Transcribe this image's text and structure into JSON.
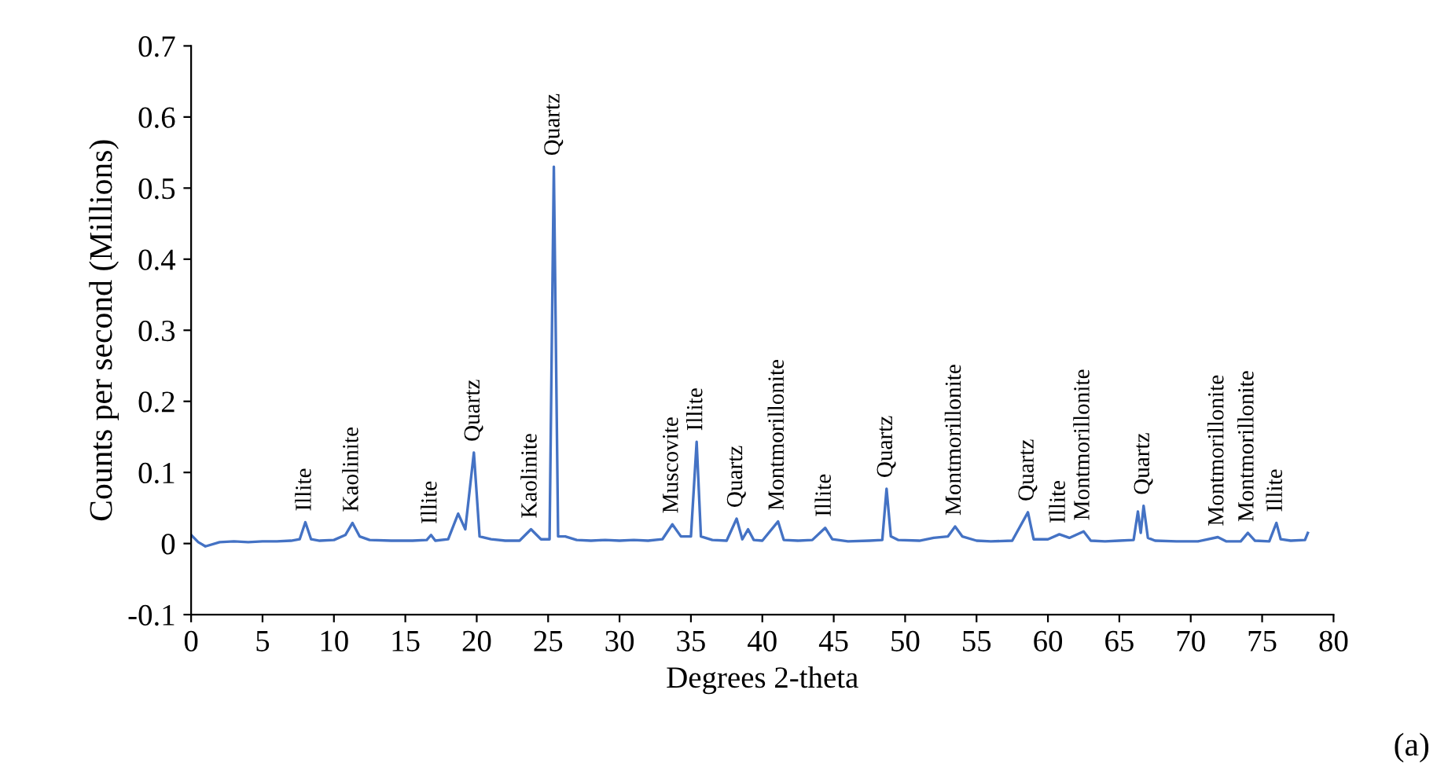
{
  "chart_data": {
    "type": "line",
    "xlabel": "Degrees 2-theta",
    "ylabel": "Counts per second (Millions)",
    "x": [
      0,
      0.5,
      1,
      2,
      3,
      4,
      5,
      6,
      7,
      7.6,
      8.0,
      8.4,
      9,
      10,
      10.8,
      11.3,
      11.8,
      12.5,
      14,
      15.5,
      16.5,
      16.8,
      17.1,
      18,
      18.7,
      19.2,
      19.8,
      20.2,
      21,
      22,
      23,
      23.8,
      24.5,
      25.1,
      25.4,
      25.7,
      26.2,
      27,
      28,
      29,
      30,
      31,
      32,
      33,
      33.7,
      34.3,
      35.0,
      35.4,
      35.7,
      36.5,
      37.5,
      38.2,
      38.6,
      39.0,
      39.4,
      40,
      41.1,
      41.5,
      42.5,
      43.5,
      44.4,
      44.9,
      46,
      47.5,
      48.4,
      48.7,
      49.0,
      49.5,
      51,
      52,
      53,
      53.5,
      54,
      55,
      56,
      57.5,
      58.6,
      59,
      60,
      60.8,
      61.5,
      62.5,
      63,
      64,
      65,
      66,
      66.3,
      66.5,
      66.7,
      67,
      67.5,
      69,
      70.5,
      71.9,
      72.5,
      73.5,
      74,
      74.5,
      75.5,
      76,
      76.3,
      77,
      78,
      78.2
    ],
    "series": [
      {
        "color": "#4472c4",
        "values": [
          0.012,
          0.002,
          -0.004,
          0.002,
          0.003,
          0.002,
          0.003,
          0.003,
          0.004,
          0.006,
          0.03,
          0.006,
          0.004,
          0.005,
          0.012,
          0.029,
          0.01,
          0.005,
          0.004,
          0.004,
          0.005,
          0.012,
          0.004,
          0.006,
          0.042,
          0.02,
          0.128,
          0.01,
          0.006,
          0.004,
          0.004,
          0.02,
          0.006,
          0.006,
          0.53,
          0.01,
          0.01,
          0.005,
          0.004,
          0.005,
          0.004,
          0.005,
          0.004,
          0.006,
          0.027,
          0.01,
          0.01,
          0.143,
          0.01,
          0.005,
          0.004,
          0.035,
          0.006,
          0.02,
          0.005,
          0.004,
          0.031,
          0.005,
          0.004,
          0.005,
          0.022,
          0.006,
          0.003,
          0.004,
          0.005,
          0.077,
          0.01,
          0.005,
          0.004,
          0.008,
          0.01,
          0.024,
          0.01,
          0.004,
          0.003,
          0.004,
          0.044,
          0.006,
          0.006,
          0.013,
          0.008,
          0.017,
          0.004,
          0.003,
          0.004,
          0.005,
          0.045,
          0.015,
          0.053,
          0.008,
          0.004,
          0.003,
          0.003,
          0.009,
          0.003,
          0.003,
          0.015,
          0.004,
          0.003,
          0.029,
          0.006,
          0.004,
          0.005,
          0.015
        ]
      }
    ],
    "xlim": [
      0,
      80
    ],
    "xticks": [
      0,
      5,
      10,
      15,
      20,
      25,
      30,
      35,
      40,
      45,
      50,
      55,
      60,
      65,
      70,
      75,
      80
    ],
    "ylim": [
      -0.1,
      0.7
    ],
    "yticks": [
      -0.1,
      0,
      0.1,
      0.2,
      0.3,
      0.4,
      0.5,
      0.6,
      0.7
    ],
    "grid": false,
    "legend": false,
    "marker": "none",
    "line_style": "solid",
    "annotations": [
      {
        "text": "Illite",
        "x": 8.0,
        "y": 0.03
      },
      {
        "text": "Kaolinite",
        "x": 11.3,
        "y": 0.029
      },
      {
        "text": "Illite",
        "x": 16.8,
        "y": 0.012
      },
      {
        "text": "Quartz",
        "x": 19.8,
        "y": 0.128
      },
      {
        "text": "Kaolinite",
        "x": 23.8,
        "y": 0.02
      },
      {
        "text": "Quartz",
        "x": 25.4,
        "y": 0.53
      },
      {
        "text": "Muscovite",
        "x": 33.7,
        "y": 0.027
      },
      {
        "text": "Illite",
        "x": 35.4,
        "y": 0.143
      },
      {
        "text": "Quartz",
        "x": 38.2,
        "y": 0.035
      },
      {
        "text": "Montmorillonite",
        "x": 41.1,
        "y": 0.031
      },
      {
        "text": "Illite",
        "x": 44.4,
        "y": 0.022
      },
      {
        "text": "Quartz",
        "x": 48.7,
        "y": 0.077
      },
      {
        "text": "Montmorillonite",
        "x": 53.5,
        "y": 0.024
      },
      {
        "text": "Quartz",
        "x": 58.6,
        "y": 0.044
      },
      {
        "text": "Illite",
        "x": 60.8,
        "y": 0.013
      },
      {
        "text": "Montmorillonite",
        "x": 62.5,
        "y": 0.017
      },
      {
        "text": "Quartz",
        "x": 66.7,
        "y": 0.053
      },
      {
        "text": "Montmorillonite",
        "x": 71.9,
        "y": 0.009
      },
      {
        "text": "Montmorillonite",
        "x": 74.0,
        "y": 0.015
      },
      {
        "text": "Illite",
        "x": 76.0,
        "y": 0.029
      },
      "(a)"
    ]
  }
}
